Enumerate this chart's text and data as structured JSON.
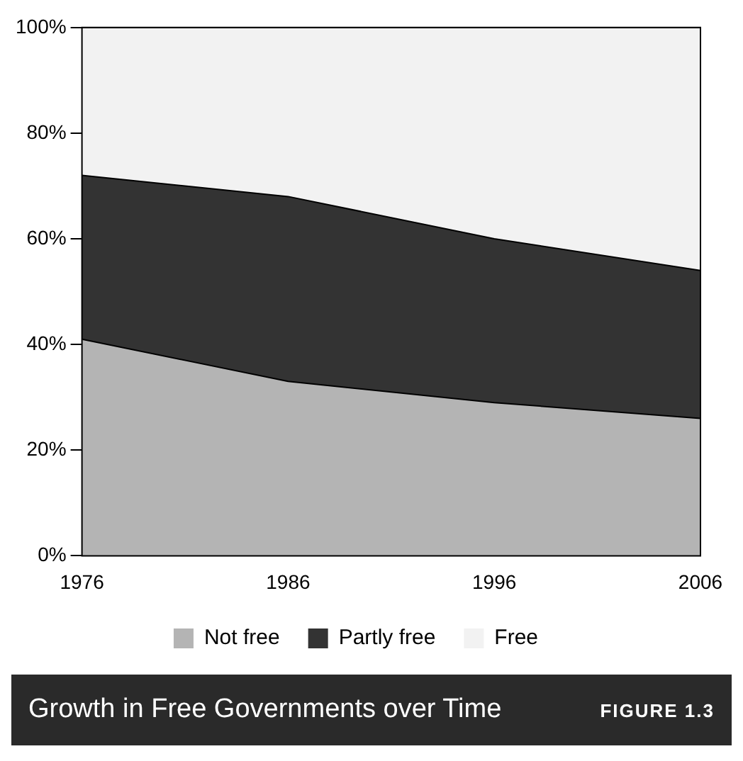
{
  "chart_data": {
    "type": "area",
    "title": "Growth in Free Governments over Time",
    "annotations": [
      "FIGURE 1.3"
    ],
    "x": [
      1976,
      1986,
      1996,
      2006
    ],
    "stacked": true,
    "series": [
      {
        "name": "Not free",
        "color": "#b4b4b4",
        "values": [
          41,
          33,
          29,
          26
        ]
      },
      {
        "name": "Partly free",
        "color": "#333333",
        "values": [
          31,
          35,
          31,
          28
        ]
      },
      {
        "name": "Free",
        "color": "#f2f2f2",
        "values": [
          28,
          32,
          40,
          46
        ]
      }
    ],
    "xlim": [
      1976,
      2006
    ],
    "xticks": [
      1976,
      1986,
      1996,
      2006
    ],
    "ylim": [
      0,
      100
    ],
    "yticks": [
      {
        "value": 0,
        "label": "0%"
      },
      {
        "value": 20,
        "label": "20%"
      },
      {
        "value": 40,
        "label": "40%"
      },
      {
        "value": 60,
        "label": "60%"
      },
      {
        "value": 80,
        "label": "80%"
      },
      {
        "value": 100,
        "label": "100%"
      }
    ],
    "grid": false,
    "legend": "bottom"
  }
}
